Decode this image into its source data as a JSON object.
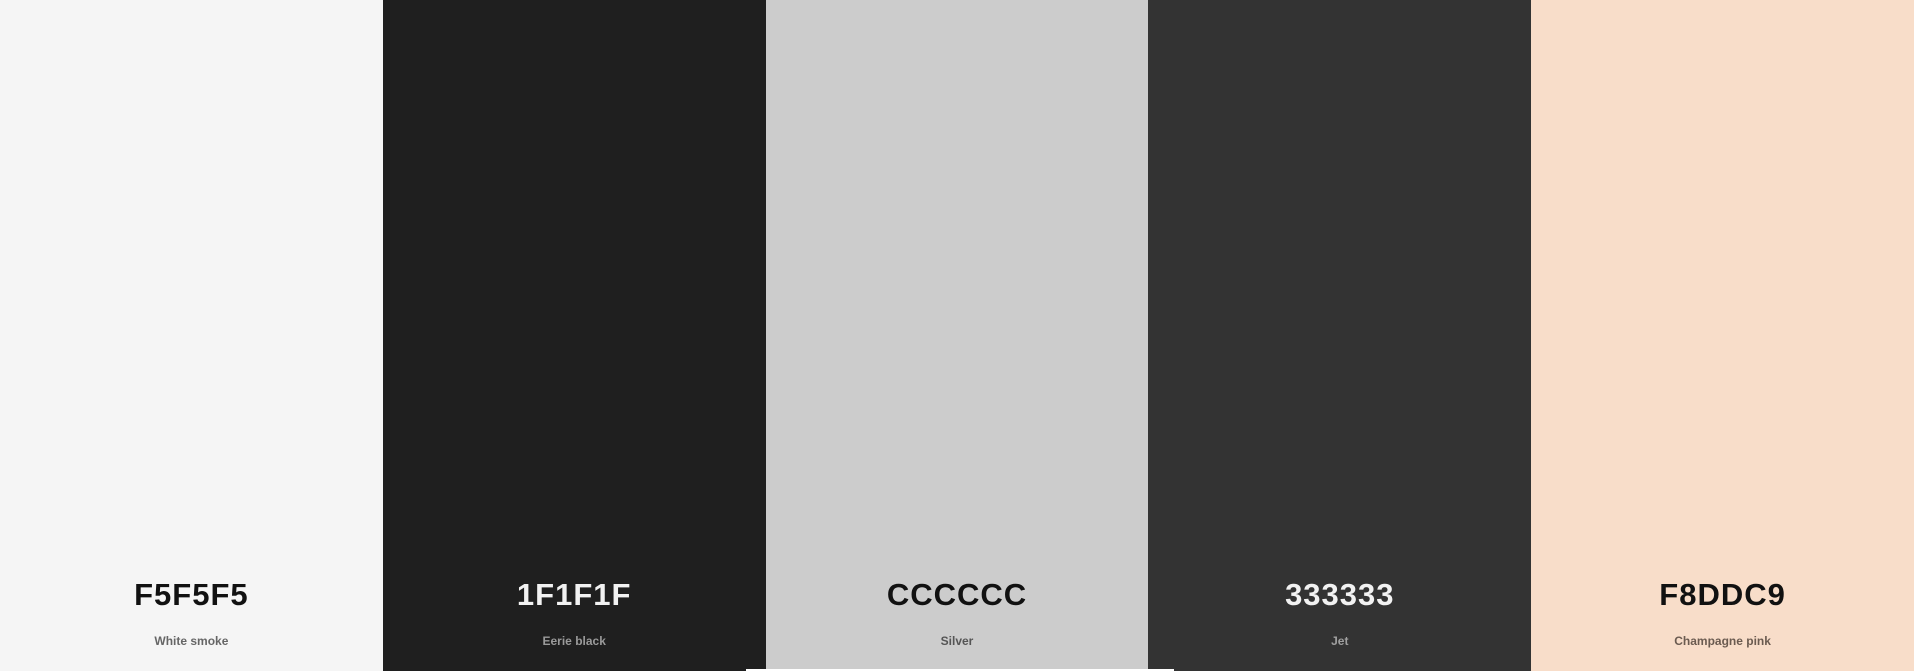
{
  "swatches": [
    {
      "hex": "F5F5F5",
      "name": "White smoke",
      "bg": "#F5F5F5",
      "hex_color": "#111111",
      "name_color": "#666666"
    },
    {
      "hex": "1F1F1F",
      "name": "Eerie black",
      "bg": "#1F1F1F",
      "hex_color": "#F2F2F2",
      "name_color": "#9A9A9A"
    },
    {
      "hex": "CCCCCC",
      "name": "Silver",
      "bg": "#CCCCCC",
      "hex_color": "#111111",
      "name_color": "#555555"
    },
    {
      "hex": "333333",
      "name": "Jet",
      "bg": "#333333",
      "hex_color": "#F2F2F2",
      "name_color": "#A0A0A0"
    },
    {
      "hex": "F8DDC9",
      "name": "Champagne pink",
      "bg": "#F8DDC9",
      "hex_color": "#111111",
      "name_color": "#6B5B50"
    }
  ]
}
